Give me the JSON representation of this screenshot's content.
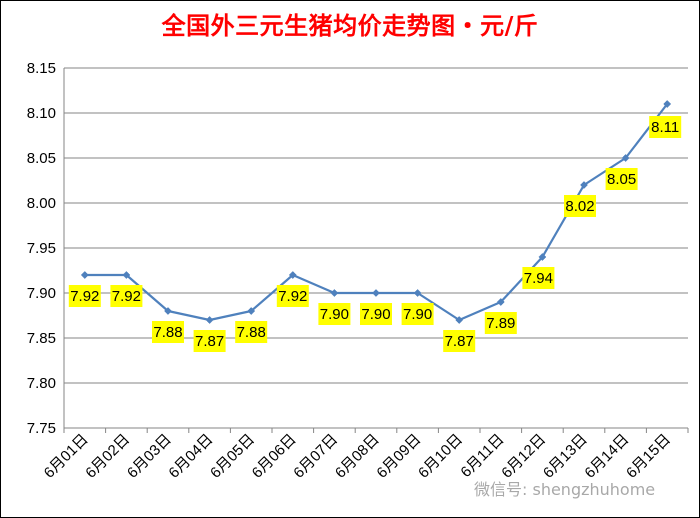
{
  "chart_data": {
    "type": "line",
    "title": "全国外三元生猪均价走势图・元/斤",
    "categories": [
      "6月01日",
      "6月02日",
      "6月03日",
      "6月04日",
      "6月05日",
      "6月06日",
      "6月07日",
      "6月08日",
      "6月09日",
      "6月10日",
      "6月11日",
      "6月12日",
      "6月13日",
      "6月14日",
      "6月15日"
    ],
    "values": [
      7.92,
      7.92,
      7.88,
      7.87,
      7.88,
      7.92,
      7.9,
      7.9,
      7.9,
      7.87,
      7.89,
      7.94,
      8.02,
      8.05,
      8.11
    ],
    "data_labels": [
      "7.92",
      "7.92",
      "7.88",
      "7.87",
      "7.88",
      "7.92",
      "7.90",
      "7.90",
      "7.90",
      "7.87",
      "7.89",
      "7.94",
      "8.02",
      "8.05",
      "8.11"
    ],
    "y_ticks": [
      "7.75",
      "7.80",
      "7.85",
      "7.90",
      "7.95",
      "8.00",
      "8.05",
      "8.10",
      "8.15"
    ],
    "ylim": [
      7.75,
      8.15
    ],
    "y_step": 0.05,
    "grid": true,
    "colors": {
      "line": "#4f81bd",
      "label_bg": "#ffff00",
      "title": "#ff0000",
      "grid": "#868686"
    }
  },
  "watermark": "微信号: shengzhuhome"
}
